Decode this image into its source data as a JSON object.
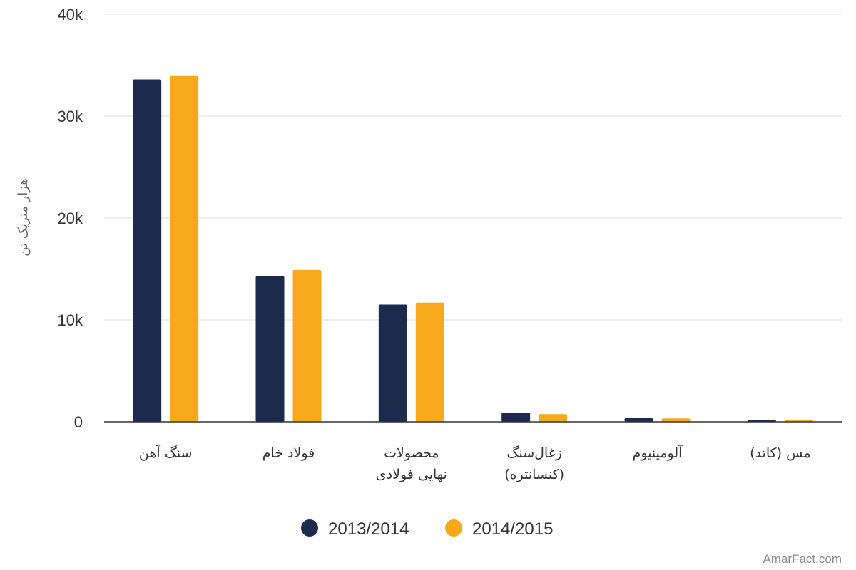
{
  "chart_data": {
    "type": "bar",
    "ylabel": "هزار متریک تن",
    "ylim": [
      0,
      40000
    ],
    "yticks": [
      {
        "value": 0,
        "label": "0"
      },
      {
        "value": 10000,
        "label": "10k"
      },
      {
        "value": 20000,
        "label": "20k"
      },
      {
        "value": 30000,
        "label": "30k"
      },
      {
        "value": 40000,
        "label": "40k"
      }
    ],
    "categories": [
      [
        "سنگ آهن"
      ],
      [
        "فولاد خام"
      ],
      [
        "محصولات",
        "نهایی فولادی"
      ],
      [
        "زغال‌سنگ",
        "(کنسانتره)"
      ],
      [
        "آلومینیوم"
      ],
      [
        "مس (کاتد)"
      ]
    ],
    "series": [
      {
        "name": "2013/2014",
        "color": "#1c2b4d",
        "values": [
          33600,
          14300,
          11500,
          900,
          350,
          200
        ]
      },
      {
        "name": "2014/2015",
        "color": "#f7a81b",
        "values": [
          34000,
          14900,
          11700,
          750,
          330,
          200
        ]
      }
    ],
    "grid": true,
    "legend": "bottom-center"
  },
  "watermark": "AmarFact.com"
}
